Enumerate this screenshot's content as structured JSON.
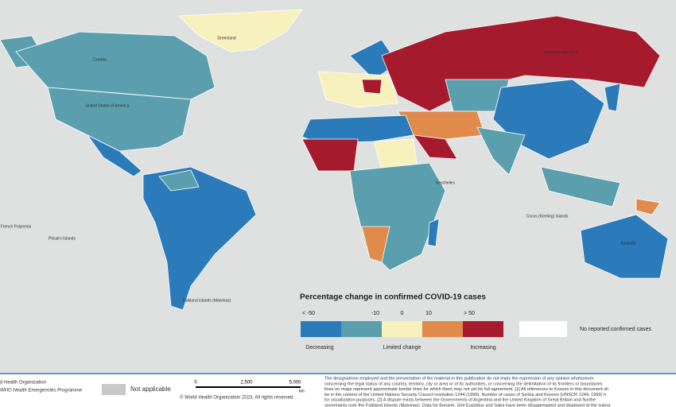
{
  "map": {
    "country_labels": [
      "Greenland",
      "Canada",
      "United States of America",
      "Russian Federation",
      "Australia",
      "Falkland Islands (Malvinas)",
      "French Polynesia",
      "Pitcairn Islands",
      "Cocos (Keeling) Islands",
      "Seychelles"
    ],
    "legend": {
      "title": "Percentage change in confirmed COVID-19 cases",
      "thresholds": [
        "< -50",
        "-10",
        "0",
        "10",
        "> 50"
      ],
      "colors": [
        "#2b7bba",
        "#5b9fae",
        "#f6f1bd",
        "#e08a4c",
        "#a51b2d"
      ],
      "groups": [
        "Decreasing",
        "Limited change",
        "Increasing"
      ],
      "no_data": {
        "label": "No reported confirmed cases",
        "color": "#ffffff"
      }
    },
    "footer": {
      "org_lines": [
        "d Health Organization",
        "WHO Health Emergencies Programme"
      ],
      "not_applicable": {
        "label": "Not applicable",
        "color": "#c8c8c8"
      },
      "scale": [
        "0",
        "2,500",
        "5,000",
        "km"
      ],
      "copyright": "© World Health Organization 2023, All rights reserved.",
      "disclaimer": [
        "The designations employed and the presentation of the material in this publication do not imply the expression of any opinion whatsoever",
        "concerning the legal status of any country, territory, city or area or of its authorities, or concerning the delimitation of its frontiers or boundaries",
        "lines on maps represent approximate border lines for which there may not yet be full agreement. [1] All references to Kosovo in this document sh",
        "be in the context of the United Nations Security Council resolution 1244 (1999). Number of cases of Serbia and Kosovo (UNSCR 1244, 1999) h",
        "for visualization purposes. [2] A dispute exists between the Governments of Argentina and the United Kingdom of Great Britain and Northe",
        "sovereignty over the Falkland Islands (Malvinas). Data for Bonaire, Sint Eustatius and Saba have been disaggregated and displayed at the subna"
      ]
    }
  }
}
